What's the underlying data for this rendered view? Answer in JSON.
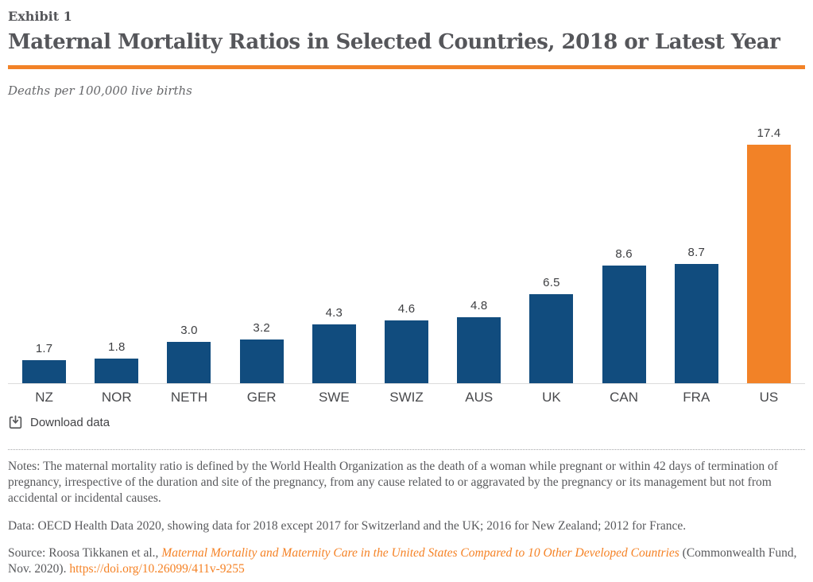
{
  "header": {
    "exhibit": "Exhibit 1",
    "title": "Maternal Mortality Ratios in Selected Countries, 2018 or Latest Year",
    "subtitle": "Deaths per 100,000 live births"
  },
  "chart_data": {
    "type": "bar",
    "categories": [
      "NZ",
      "NOR",
      "NETH",
      "GER",
      "SWE",
      "SWIZ",
      "AUS",
      "UK",
      "CAN",
      "FRA",
      "US"
    ],
    "values": [
      1.7,
      1.8,
      3.0,
      3.2,
      4.3,
      4.6,
      4.8,
      6.5,
      8.6,
      8.7,
      17.4
    ],
    "title": "Maternal Mortality Ratios in Selected Countries, 2018 or Latest Year",
    "xlabel": "",
    "ylabel": "Deaths per 100,000 live births",
    "ylim": [
      0,
      18
    ],
    "grid": false,
    "legend": false,
    "value_labels": true,
    "highlight_category": "US",
    "bar_color": "#114c7e",
    "highlight_color": "#f28227"
  },
  "download": {
    "label": "Download data"
  },
  "footer": {
    "notes": "Notes: The maternal mortality ratio is defined by the World Health Organization as the death of a woman while pregnant or within 42 days of termination of pregnancy, irrespective of the duration and site of the pregnancy, from any cause related to or aggravated by the pregnancy or its management but not from accidental or incidental causes.",
    "data": "Data: OECD Health Data 2020, showing data for 2018 except 2017 for Switzerland and the UK; 2016 for New Zealand; 2012 for France.",
    "source_prefix": "Source: Roosa Tikkanen et al., ",
    "source_title": "Maternal Mortality and Maternity Care in the United States Compared to 10 Other Developed Countries",
    "source_suffix": " (Commonwealth Fund, Nov. 2020). ",
    "doi": "https://doi.org/10.26099/411v-9255"
  },
  "colors": {
    "accent_orange": "#f28227",
    "bar_blue": "#114c7e",
    "link_orange": "#f58225",
    "heading_gray": "#55565a"
  }
}
